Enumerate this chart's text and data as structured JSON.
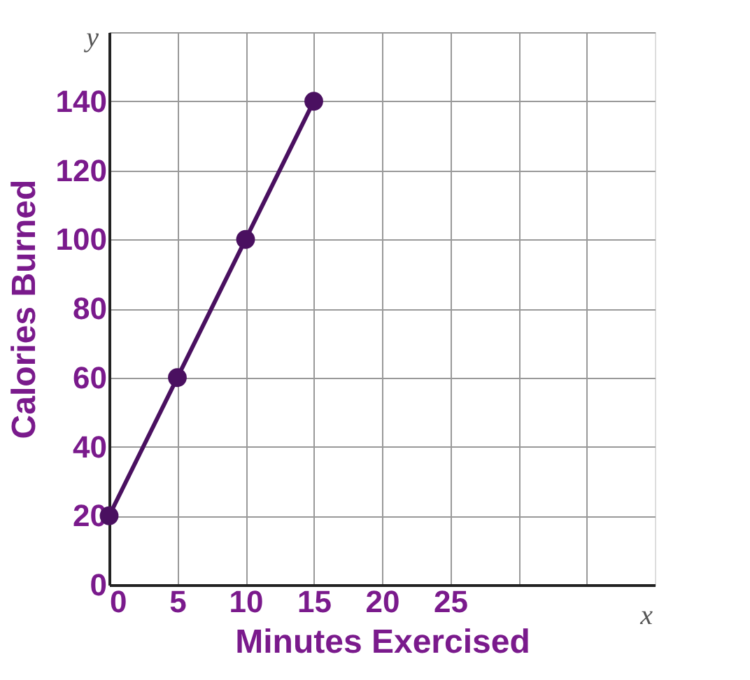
{
  "chart_data": {
    "type": "line",
    "xlabel": "Minutes Exercised",
    "ylabel": "Calories Burned",
    "x": [
      0,
      5,
      10,
      15
    ],
    "series": [
      {
        "color": "#4a1060",
        "values": [
          20,
          60,
          100,
          140
        ]
      }
    ],
    "xlim": [
      0,
      40
    ],
    "ylim": [
      0,
      160
    ],
    "xticks": [
      0,
      5,
      10,
      15,
      20,
      25,
      {
        "value": 30,
        "label": null
      },
      {
        "value": 35,
        "label": null
      }
    ],
    "yticks": [
      0,
      20,
      40,
      60,
      80,
      100,
      120,
      140,
      {
        "value": 160,
        "label": null
      }
    ],
    "grid": true,
    "marker": "circle",
    "line_style": "solid",
    "annotations": [
      "y",
      "x"
    ]
  }
}
